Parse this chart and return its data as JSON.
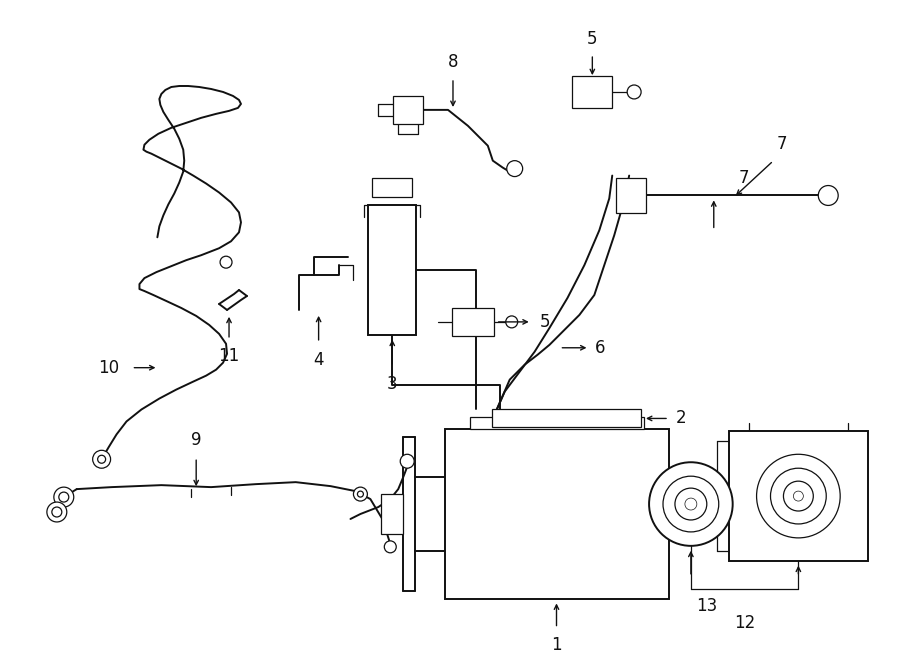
{
  "bg_color": "#ffffff",
  "line_color": "#111111",
  "fig_width": 9.0,
  "fig_height": 6.61,
  "dpi": 100,
  "lw_main": 1.4,
  "lw_thin": 0.9,
  "lw_thick": 2.0,
  "font_size": 11,
  "font_size_label": 12
}
